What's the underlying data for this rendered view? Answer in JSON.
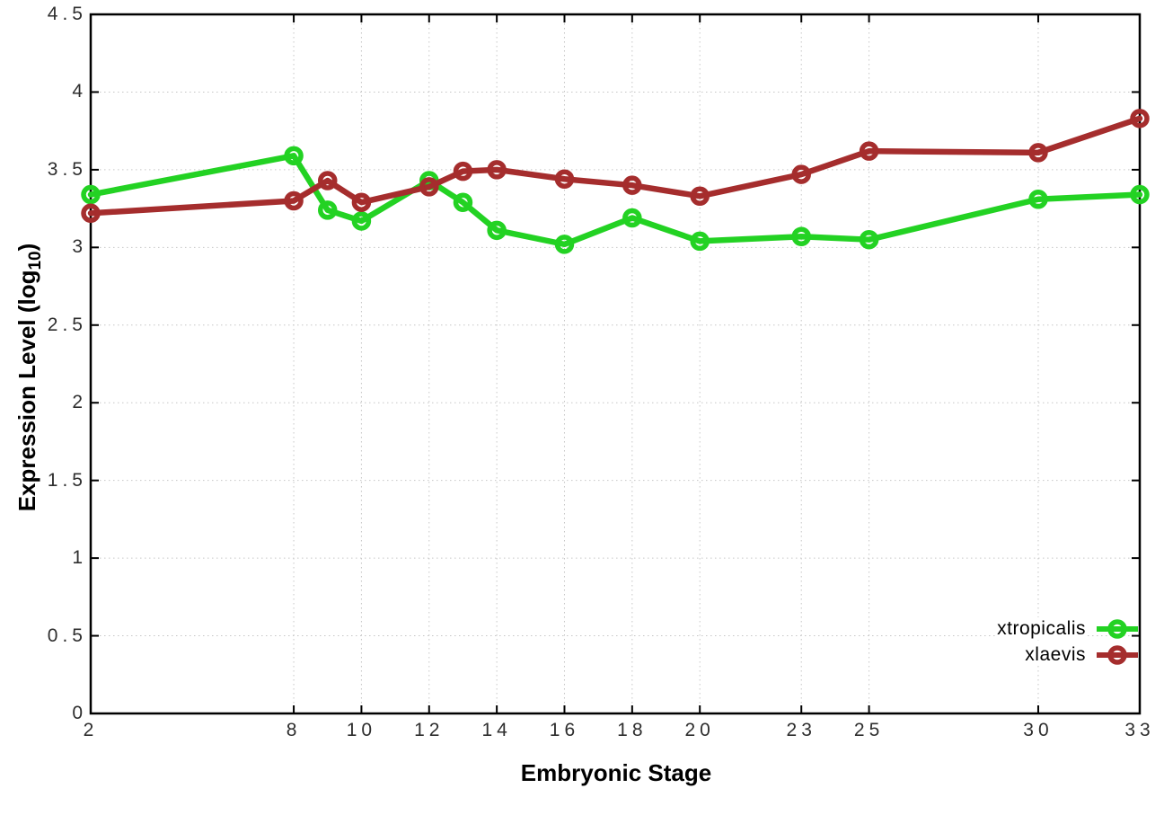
{
  "chart_data": {
    "type": "line",
    "title": "",
    "xlabel": "Embryonic Stage",
    "ylabel": "Expression Level (log10)",
    "ylabel_prefix": "Expression Level (log",
    "ylabel_sub": "10",
    "ylabel_suffix": ")",
    "x": [
      2,
      8,
      9,
      10,
      12,
      13,
      14,
      16,
      18,
      20,
      23,
      25,
      30,
      33
    ],
    "series": [
      {
        "name": "xtropicalis",
        "color": "#23d223",
        "values": [
          3.34,
          3.59,
          3.24,
          3.17,
          3.43,
          3.29,
          3.11,
          3.02,
          3.19,
          3.04,
          3.07,
          3.05,
          3.31,
          3.34
        ]
      },
      {
        "name": "xlaevis",
        "color": "#a52d2d",
        "values": [
          3.22,
          3.3,
          3.43,
          3.29,
          3.39,
          3.49,
          3.5,
          3.44,
          3.4,
          3.33,
          3.47,
          3.62,
          3.61,
          3.83
        ]
      }
    ],
    "xlim": [
      2,
      33
    ],
    "ylim": [
      0,
      4.5
    ],
    "x_tick_values": [
      2,
      8,
      10,
      12,
      14,
      16,
      18,
      20,
      23,
      25,
      30,
      33
    ],
    "x_tick_labels": [
      "2",
      "8",
      "10",
      "12",
      "14",
      "16",
      "18",
      "20",
      "23",
      "25",
      "30",
      "33"
    ],
    "y_tick_values": [
      0,
      0.5,
      1,
      1.5,
      2,
      2.5,
      3,
      3.5,
      4,
      4.5
    ],
    "y_tick_labels": [
      "0",
      "0.5",
      "1",
      "1.5",
      "2",
      "2.5",
      "3",
      "3.5",
      "4",
      "4.5"
    ],
    "grid": true,
    "grid_style": "dotted",
    "grid_color": "#c6c6c6",
    "axis_color": "#000000",
    "tick_text_color": "#2e2e2e",
    "marker": "open-circle",
    "legend_position": "bottom-right",
    "legend_entries": [
      "xtropicalis",
      "xlaevis"
    ]
  }
}
